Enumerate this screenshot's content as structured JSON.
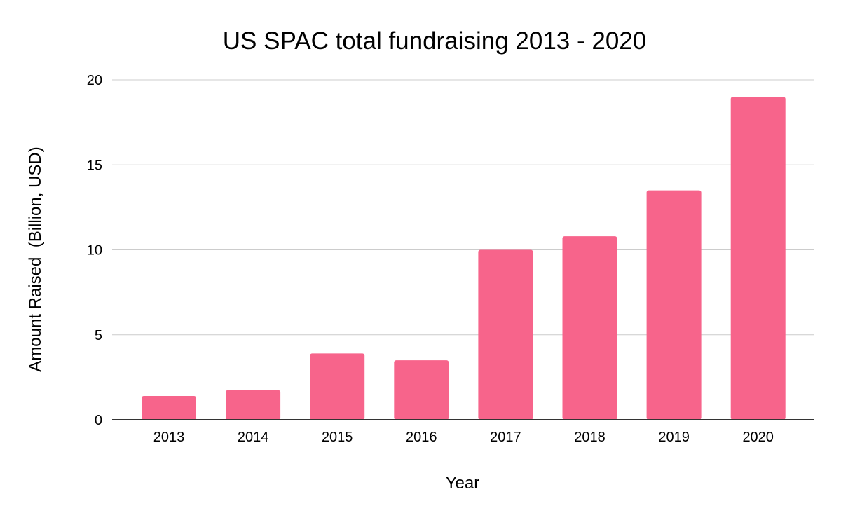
{
  "chart_data": {
    "type": "bar",
    "title": "US SPAC total fundraising 2013 - 2020",
    "xlabel": "Year",
    "ylabel": "Amount Raised  (Billion, USD)",
    "categories": [
      "2013",
      "2014",
      "2015",
      "2016",
      "2017",
      "2018",
      "2019",
      "2020"
    ],
    "values": [
      1.4,
      1.75,
      3.9,
      3.5,
      10.0,
      10.8,
      13.5,
      19.0
    ],
    "ylim": [
      0,
      20
    ],
    "yticks": [
      0,
      5,
      10,
      15,
      20
    ],
    "grid": true,
    "legend": "none",
    "bar_color": "#f7648b"
  }
}
